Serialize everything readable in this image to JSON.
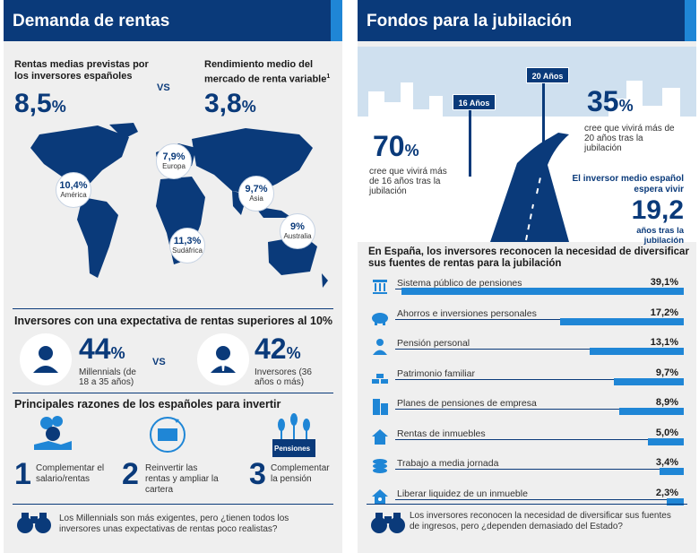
{
  "left": {
    "title": "Demanda de rentas",
    "rentas": {
      "label": "Rentas medias previstas por los inversores españoles",
      "value": "8,5",
      "unit": "%",
      "vs": "VS"
    },
    "rendimiento": {
      "label": "Rendimiento medio del mercado de renta variable",
      "sup": "1",
      "value": "3,8",
      "unit": "%"
    },
    "regions": [
      {
        "value": "10,4%",
        "name": "América"
      },
      {
        "value": "7,9%",
        "name": "Europa"
      },
      {
        "value": "9,7%",
        "name": "Asia"
      },
      {
        "value": "11,3%",
        "name": "Sudáfrica"
      },
      {
        "value": "9%",
        "name": "Australia"
      }
    ],
    "expectativa": {
      "title": "Inversores con una expectativa de rentas superiores al 10%",
      "millennials": {
        "value": "44",
        "unit": "%",
        "desc": "Millennials (de 18 a 35 años)"
      },
      "vs": "VS",
      "inversores": {
        "value": "42",
        "unit": "%",
        "desc": "Inversores (36 años o más)"
      }
    },
    "razones": {
      "title": "Principales razones de los españoles para invertir",
      "items": [
        {
          "num": "1",
          "text": "Complementar el salario/rentas"
        },
        {
          "num": "2",
          "text": "Reinvertir las rentas y ampliar la cartera"
        },
        {
          "num": "3",
          "text": "Complementar la pensión",
          "badge": "Pensiones"
        }
      ]
    },
    "footer": "Los Millennials son más exigentes, pero ¿tienen todos los inversores unas expectativas de rentas poco realistas?"
  },
  "right": {
    "title": "Fondos para la jubilación",
    "sign_16": "16 Años",
    "sign_20": "20 Años",
    "stat_70": {
      "value": "70",
      "unit": "%",
      "desc": "cree que vivirá más de 16 años tras la jubilación"
    },
    "stat_35": {
      "value": "35",
      "unit": "%",
      "desc": "cree que vivirá más de 20 años tras la jubilación"
    },
    "medio": {
      "label": "El inversor medio español espera vivir",
      "value": "19,2",
      "desc": "años tras la jubilación"
    },
    "chart_title": "En España, los inversores reconocen la necesidad de diversificar sus fuentes de rentas para la jubilación",
    "footer": "Los inversores reconocen la necesidad de diversificar sus fuentes de ingresos, pero ¿dependen demasiado del Estado?"
  },
  "chart_data": {
    "type": "bar",
    "title": "En España, los inversores reconocen la necesidad de diversificar sus fuentes de rentas para la jubilación",
    "categories": [
      "Sistema público de pensiones",
      "Ahorros e inversiones personales",
      "Pensión personal",
      "Patrimonio familiar",
      "Planes de pensiones de empresa",
      "Rentas de inmuebles",
      "Trabajo a media jornada",
      "Liberar liquidez de un inmueble"
    ],
    "values": [
      39.1,
      17.2,
      13.1,
      9.7,
      8.9,
      5.0,
      3.4,
      2.3
    ],
    "labels": [
      "39,1%",
      "17,2%",
      "13,1%",
      "9,7%",
      "8,9%",
      "5,0%",
      "3,4%",
      "2,3%"
    ],
    "icons": [
      "pillar-icon",
      "piggy-bank-icon",
      "person-icon",
      "gold-bars-icon",
      "building-icon",
      "house-icon",
      "coins-icon",
      "house-key-icon"
    ],
    "xlim": [
      0,
      40
    ]
  },
  "colors": {
    "navy": "#0a3a7a",
    "accent": "#1f86d6",
    "panel": "#efefef"
  }
}
